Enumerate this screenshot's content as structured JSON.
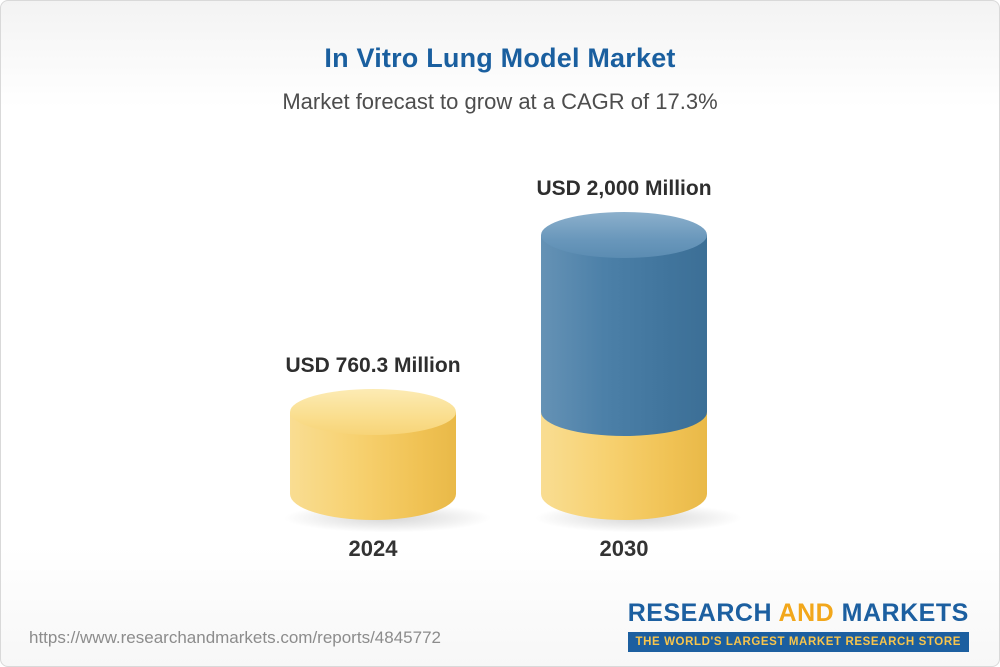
{
  "header": {
    "title": "In Vitro Lung Model Market",
    "subtitle": "Market forecast to grow at a CAGR of 17.3%"
  },
  "chart_data": {
    "type": "bar",
    "title": "In Vitro Lung Model Market",
    "subtitle": "Market forecast to grow at a CAGR of 17.3%",
    "unit": "USD Million",
    "cagr_percent": 17.3,
    "categories": [
      "2024",
      "2030"
    ],
    "values": [
      760.3,
      2000
    ],
    "value_labels": [
      "USD 760.3 Million",
      "USD 2,000 Million"
    ],
    "ylim": [
      0,
      2000
    ],
    "grid": false,
    "legend": "none",
    "colors": {
      "base_segment": "#F2C75C",
      "growth_segment": "#4679A2"
    },
    "note": "2030 cylinder shows yellow base portion equal to 2024 value with blue growth portion stacked above"
  },
  "footer": {
    "url": "https://www.researchandmarkets.com/reports/4845772",
    "logo": {
      "research": "RESEARCH",
      "and": "AND",
      "markets": "MARKETS",
      "tagline": "THE WORLD'S LARGEST MARKET RESEARCH STORE"
    }
  }
}
